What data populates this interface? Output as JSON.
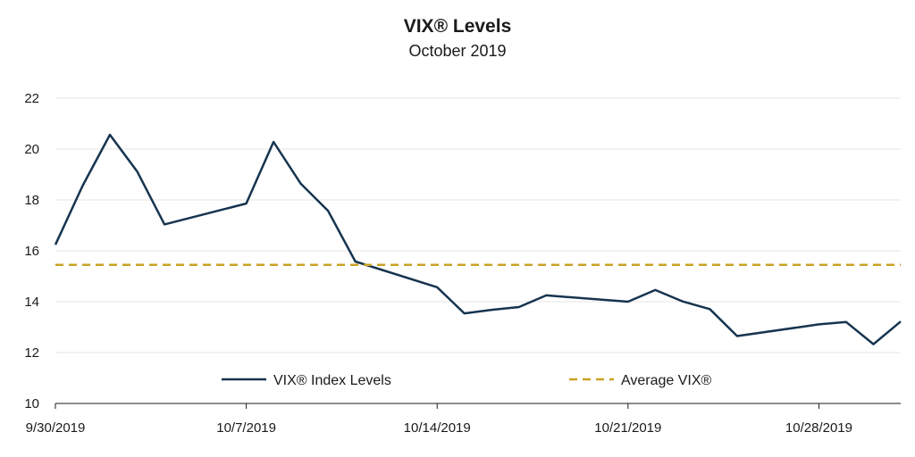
{
  "chart_data": {
    "type": "line",
    "title": "VIX® Levels",
    "subtitle": "October 2019",
    "xlabel": "",
    "ylabel": "",
    "x_tick_labels": [
      "9/30/2019",
      "10/7/2019",
      "10/14/2019",
      "10/21/2019",
      "10/28/2019"
    ],
    "ylim": [
      10,
      22
    ],
    "y_ticks": [
      10,
      12,
      14,
      16,
      18,
      20,
      22
    ],
    "grid": "horizontal",
    "legend_position": "bottom-inside",
    "series": [
      {
        "name": "VIX® Index Levels",
        "style": "solid",
        "color": "#16344f",
        "points": [
          {
            "x": "2019-09-30",
            "y": 16.24
          },
          {
            "x": "2019-10-01",
            "y": 18.56
          },
          {
            "x": "2019-10-02",
            "y": 20.56
          },
          {
            "x": "2019-10-03",
            "y": 19.12
          },
          {
            "x": "2019-10-04",
            "y": 17.04
          },
          {
            "x": "2019-10-07",
            "y": 17.86
          },
          {
            "x": "2019-10-08",
            "y": 20.28
          },
          {
            "x": "2019-10-09",
            "y": 18.64
          },
          {
            "x": "2019-10-10",
            "y": 17.57
          },
          {
            "x": "2019-10-11",
            "y": 15.58
          },
          {
            "x": "2019-10-14",
            "y": 14.57
          },
          {
            "x": "2019-10-15",
            "y": 13.54
          },
          {
            "x": "2019-10-16",
            "y": 13.68
          },
          {
            "x": "2019-10-17",
            "y": 13.79
          },
          {
            "x": "2019-10-18",
            "y": 14.25
          },
          {
            "x": "2019-10-21",
            "y": 14.0
          },
          {
            "x": "2019-10-22",
            "y": 14.46
          },
          {
            "x": "2019-10-23",
            "y": 14.01
          },
          {
            "x": "2019-10-24",
            "y": 13.71
          },
          {
            "x": "2019-10-25",
            "y": 12.65
          },
          {
            "x": "2019-10-28",
            "y": 13.11
          },
          {
            "x": "2019-10-29",
            "y": 13.2
          },
          {
            "x": "2019-10-30",
            "y": 12.33
          },
          {
            "x": "2019-10-31",
            "y": 13.22
          }
        ]
      },
      {
        "name": "Average VIX®",
        "style": "dashed",
        "color": "#c9a227",
        "points": [
          {
            "x": "2019-09-30",
            "y": 15.45
          },
          {
            "x": "2019-10-31",
            "y": 15.45
          }
        ]
      }
    ]
  }
}
